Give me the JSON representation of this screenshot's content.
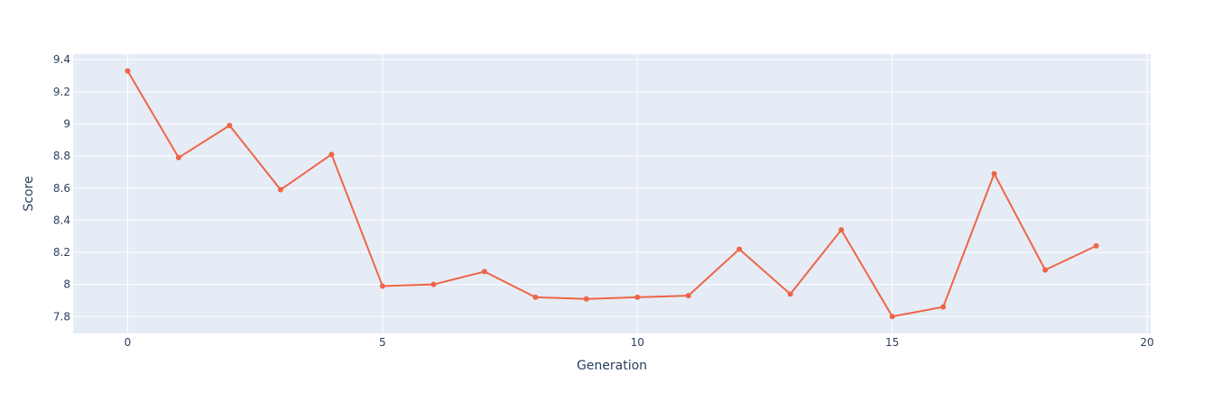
{
  "chart_data": {
    "type": "line",
    "title": "",
    "xlabel": "Generation",
    "ylabel": "Score",
    "xlim": [
      -1.07,
      20.07
    ],
    "ylim": [
      7.695,
      9.435
    ],
    "xticks": [
      0,
      5,
      10,
      15,
      20
    ],
    "xtick_labels": [
      "0",
      "5",
      "10",
      "15",
      "20"
    ],
    "yticks": [
      7.8,
      8,
      8.2,
      8.4,
      8.6,
      8.8,
      9,
      9.2,
      9.4
    ],
    "ytick_labels": [
      "7.8",
      "8",
      "8.2",
      "8.4",
      "8.6",
      "8.8",
      "9",
      "9.2",
      "9.4"
    ],
    "grid": true,
    "legend": "none",
    "series": [
      {
        "color": "#ef6548",
        "mode": "lines+markers",
        "x": [
          0,
          1,
          2,
          3,
          4,
          5,
          6,
          7,
          8,
          9,
          10,
          11,
          12,
          13,
          14,
          15,
          16,
          17,
          18,
          19
        ],
        "y": [
          9.33,
          8.79,
          8.99,
          8.59,
          8.81,
          7.99,
          8.0,
          8.08,
          7.92,
          7.91,
          7.92,
          7.93,
          8.22,
          7.94,
          8.34,
          7.8,
          7.86,
          8.69,
          8.09,
          8.24
        ]
      }
    ],
    "colors": {
      "plot_background": "#e5ecf6",
      "grid": "#ffffff",
      "text": "#2a3f5f",
      "line": "#ef6548"
    }
  }
}
